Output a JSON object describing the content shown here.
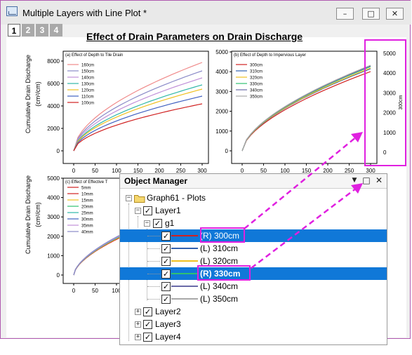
{
  "window": {
    "title": "Multiple Layers with Line Plot *",
    "controls": {
      "minimize": "–",
      "maximize": "□",
      "close": "✕"
    },
    "layer_tabs": [
      "1",
      "2",
      "3",
      "4"
    ],
    "graph_title": "Effect of Drain Parameters on Drain Discharge"
  },
  "charts": {
    "y_label": "Cumulative Drain Discharge",
    "y_unit": "(cm²/cm)",
    "right_axis_label": "300cm",
    "panel_a": {
      "title": "(a) Effect of Depth to Tile Drain",
      "x_ticks": [
        "0",
        "50",
        "100",
        "150",
        "200",
        "250",
        "300"
      ],
      "y_ticks": [
        "0",
        "2000",
        "4000",
        "6000",
        "8000"
      ],
      "legend": [
        "160cm",
        "150cm",
        "140cm",
        "130cm",
        "120cm",
        "110cm",
        "100cm"
      ],
      "colors": [
        "#f08a8a",
        "#8a8ac8",
        "#c090d8",
        "#30b8a8",
        "#f0c020",
        "#4060c0",
        "#d02020"
      ]
    },
    "panel_b": {
      "title": "(b) Effect of Depth to Impervious Layer",
      "x_ticks": [
        "0",
        "50",
        "100",
        "150",
        "200",
        "250",
        "300"
      ],
      "y_ticks": [
        "0",
        "1000",
        "2000",
        "3000",
        "4000",
        "5000"
      ],
      "right_ticks": [
        "0",
        "1000",
        "2000",
        "3000",
        "4000",
        "5000"
      ],
      "legend": [
        "300cm",
        "310cm",
        "320cm",
        "330cm",
        "340cm",
        "350cm"
      ],
      "colors": [
        "#d02020",
        "#3060b0",
        "#f0c020",
        "#30c070",
        "#6a6aa8",
        "#a8a8a8"
      ]
    },
    "panel_c": {
      "title": "(c) Effect of Effective T",
      "x_ticks": [
        "0",
        "50",
        "100"
      ],
      "y_ticks": [
        "0",
        "1000",
        "2000",
        "3000",
        "4000",
        "5000"
      ],
      "legend": [
        "5mm",
        "10mm",
        "15mm",
        "20mm",
        "25mm",
        "30mm",
        "35mm",
        "40mm"
      ],
      "colors": [
        "#d02020",
        "#d02020",
        "#f0c020",
        "#30c070",
        "#30b8a8",
        "#4060c0",
        "#c090d8",
        "#8a8ac8"
      ]
    }
  },
  "object_manager": {
    "title": "Object Manager",
    "buttons": {
      "dropdown": "▼",
      "restore": "□",
      "close": "✕"
    },
    "root": "Graph61 - Plots",
    "layer1": "Layer1",
    "group": "g1",
    "plots": [
      {
        "label": "(R) 300cm",
        "color": "#d02020",
        "selected": true
      },
      {
        "label": "(L) 310cm",
        "color": "#3060b0",
        "selected": false
      },
      {
        "label": "(L) 320cm",
        "color": "#f0c020",
        "selected": false
      },
      {
        "label": "(R) 330cm",
        "color": "#30c070",
        "selected": true
      },
      {
        "label": "(L) 340cm",
        "color": "#6a6aa8",
        "selected": false
      },
      {
        "label": "(L) 350cm",
        "color": "#a8a8a8",
        "selected": false
      }
    ],
    "other_layers": [
      "Layer2",
      "Layer3",
      "Layer4"
    ],
    "check": "✓",
    "plus": "+",
    "minus": "−"
  },
  "accent_colors": {
    "highlight": "#e020e0",
    "selection": "#1078d8"
  }
}
